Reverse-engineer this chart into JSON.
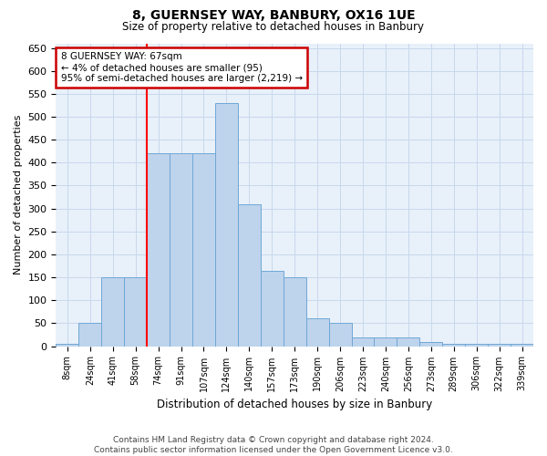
{
  "title1": "8, GUERNSEY WAY, BANBURY, OX16 1UE",
  "title2": "Size of property relative to detached houses in Banbury",
  "xlabel": "Distribution of detached houses by size in Banbury",
  "ylabel": "Number of detached properties",
  "categories": [
    "8sqm",
    "24sqm",
    "41sqm",
    "58sqm",
    "74sqm",
    "91sqm",
    "107sqm",
    "124sqm",
    "140sqm",
    "157sqm",
    "173sqm",
    "190sqm",
    "206sqm",
    "223sqm",
    "240sqm",
    "256sqm",
    "273sqm",
    "289sqm",
    "306sqm",
    "322sqm",
    "339sqm"
  ],
  "values": [
    5,
    50,
    150,
    150,
    420,
    420,
    420,
    530,
    310,
    165,
    150,
    60,
    50,
    20,
    20,
    20,
    10,
    5,
    5,
    5,
    5
  ],
  "bar_color": "#bed3ec",
  "bar_edge_color": "#6fa8d6",
  "grid_color": "#c8d8ec",
  "bg_color": "#e8f0fa",
  "red_line_x": 3.5,
  "annotation_text": "8 GUERNSEY WAY: 67sqm\n← 4% of detached houses are smaller (95)\n95% of semi-detached houses are larger (2,219) →",
  "annotation_box_color": "#ffffff",
  "annotation_box_edge": "#cc0000",
  "ylim": [
    0,
    660
  ],
  "yticks": [
    0,
    50,
    100,
    150,
    200,
    250,
    300,
    350,
    400,
    450,
    500,
    550,
    600,
    650
  ],
  "footer1": "Contains HM Land Registry data © Crown copyright and database right 2024.",
  "footer2": "Contains public sector information licensed under the Open Government Licence v3.0."
}
